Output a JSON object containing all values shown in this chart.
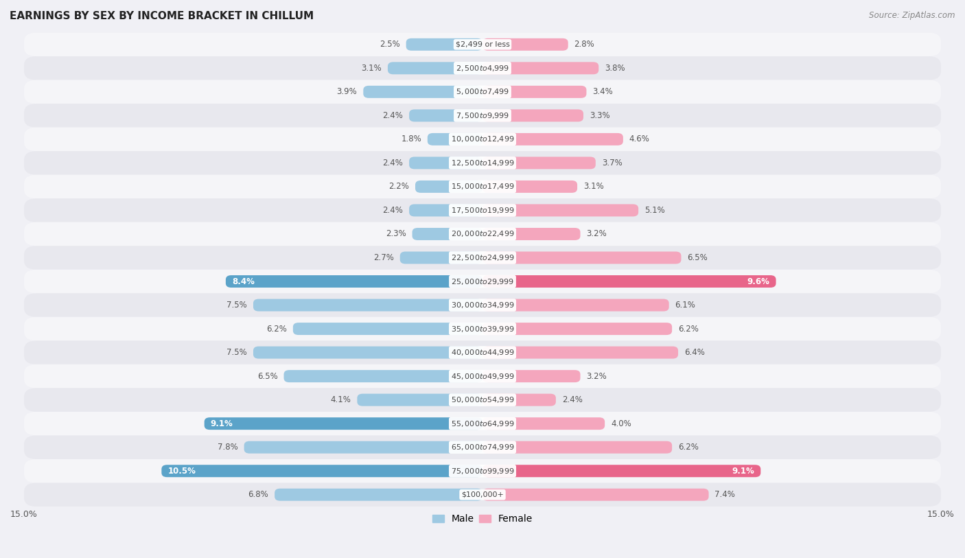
{
  "title": "EARNINGS BY SEX BY INCOME BRACKET IN CHILLUM",
  "source": "Source: ZipAtlas.com",
  "categories": [
    "$2,499 or less",
    "$2,500 to $4,999",
    "$5,000 to $7,499",
    "$7,500 to $9,999",
    "$10,000 to $12,499",
    "$12,500 to $14,999",
    "$15,000 to $17,499",
    "$17,500 to $19,999",
    "$20,000 to $22,499",
    "$22,500 to $24,999",
    "$25,000 to $29,999",
    "$30,000 to $34,999",
    "$35,000 to $39,999",
    "$40,000 to $44,999",
    "$45,000 to $49,999",
    "$50,000 to $54,999",
    "$55,000 to $64,999",
    "$65,000 to $74,999",
    "$75,000 to $99,999",
    "$100,000+"
  ],
  "male_values": [
    2.5,
    3.1,
    3.9,
    2.4,
    1.8,
    2.4,
    2.2,
    2.4,
    2.3,
    2.7,
    8.4,
    7.5,
    6.2,
    7.5,
    6.5,
    4.1,
    9.1,
    7.8,
    10.5,
    6.8
  ],
  "female_values": [
    2.8,
    3.8,
    3.4,
    3.3,
    4.6,
    3.7,
    3.1,
    5.1,
    3.2,
    6.5,
    9.6,
    6.1,
    6.2,
    6.4,
    3.2,
    2.4,
    4.0,
    6.2,
    9.1,
    7.4
  ],
  "male_color": "#9ec9e2",
  "female_color": "#f4a6bd",
  "highlight_male": [
    10,
    16,
    18
  ],
  "highlight_female": [
    10,
    18
  ],
  "male_highlight_color": "#5ba3c9",
  "female_highlight_color": "#e8658a",
  "background_color": "#f0f0f5",
  "row_bg_light": "#f5f5f8",
  "row_bg_dark": "#e8e8ee",
  "xlim": 15.0,
  "legend_male": "Male",
  "legend_female": "Female",
  "cat_label_color": "#444444",
  "val_label_color": "#555555",
  "val_label_highlight_color": "#ffffff"
}
